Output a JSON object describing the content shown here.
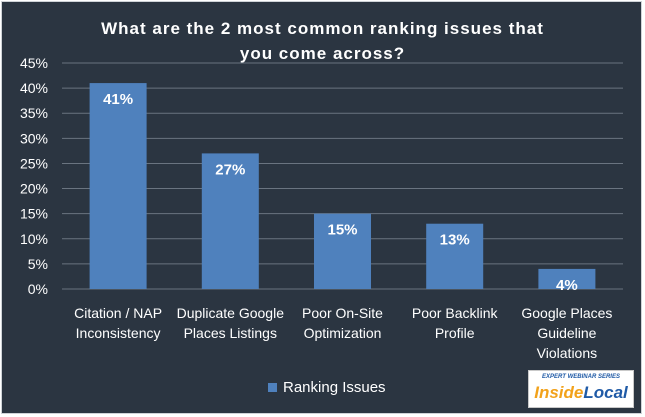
{
  "title_lines": [
    "What are the 2 most common ranking issues that",
    "you come across?"
  ],
  "chart_data": {
    "type": "bar",
    "title": "What are the 2 most common ranking issues that you come across?",
    "categories": [
      [
        "Citation / NAP",
        "Inconsistency"
      ],
      [
        "Duplicate Google",
        "Places Listings"
      ],
      [
        "Poor On-Site",
        "Optimization"
      ],
      [
        "Poor Backlink",
        "Profile"
      ],
      [
        "Google Places",
        "Guideline",
        "Violations"
      ]
    ],
    "series": [
      {
        "name": "Ranking Issues",
        "values": [
          41,
          27,
          15,
          13,
          4
        ],
        "color": "#4f81bd"
      }
    ],
    "data_labels": [
      "41%",
      "27%",
      "15%",
      "13%",
      "4%"
    ],
    "ylim": [
      0,
      45
    ],
    "yticks": [
      0,
      5,
      10,
      15,
      20,
      25,
      30,
      35,
      40,
      45
    ],
    "ytick_labels": [
      "0%",
      "5%",
      "10%",
      "15%",
      "20%",
      "25%",
      "30%",
      "35%",
      "40%",
      "45%"
    ],
    "grid": true,
    "legend_position": "bottom",
    "xlabel": "",
    "ylabel": ""
  },
  "colors": {
    "background": "#2b3541",
    "bar": "#4f81bd",
    "grid": "#6a7480",
    "text": "#ffffff"
  },
  "legend": {
    "label": "Ranking Issues"
  },
  "logo": {
    "series": "EXPERT WEBINAR SERIES",
    "inside": "Inside",
    "local": "Local"
  }
}
